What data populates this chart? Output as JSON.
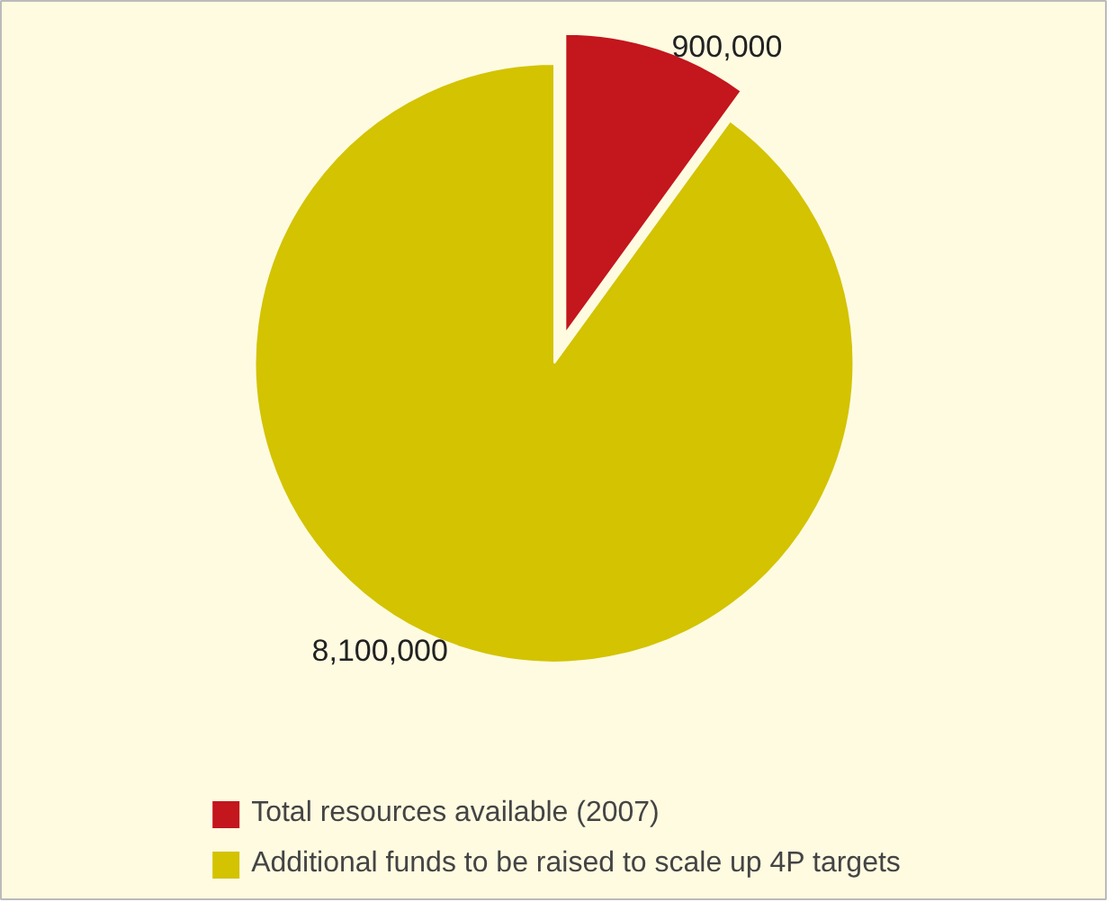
{
  "chart_data": {
    "type": "pie",
    "categories": [
      "Total resources available (2007)",
      "Additional funds to be raised to scale up 4P targets"
    ],
    "values": [
      900000,
      8100000
    ],
    "colors": [
      "#c3161d",
      "#d3c300"
    ],
    "value_labels": [
      "900,000",
      "8,100,000"
    ],
    "legend": "bottom"
  }
}
